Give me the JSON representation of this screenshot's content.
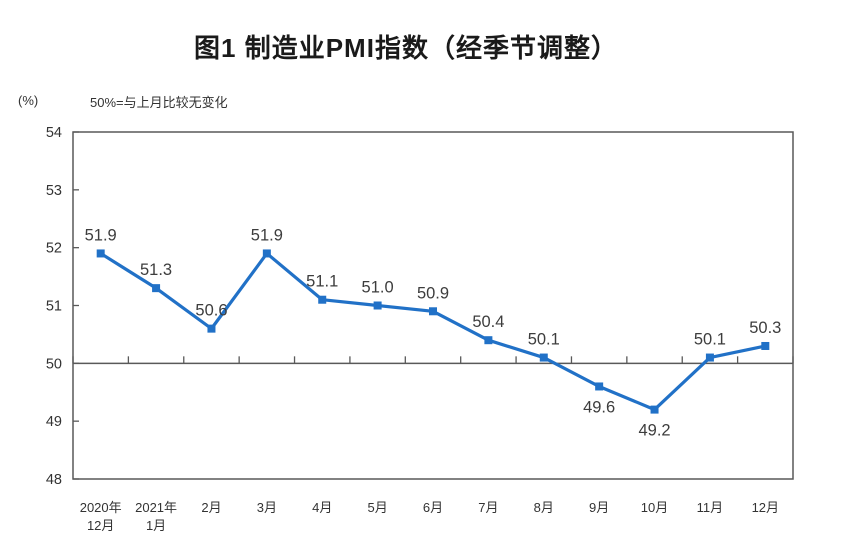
{
  "header": {
    "title": "图1 制造业PMI指数（经季节调整）",
    "unit_label": "(%)",
    "note": "50%=与上月比较无变化"
  },
  "chart_data": {
    "type": "line",
    "categories": [
      "2020年\n12月",
      "2021年\n1月",
      "2月",
      "3月",
      "4月",
      "5月",
      "6月",
      "7月",
      "8月",
      "9月",
      "10月",
      "11月",
      "12月"
    ],
    "values": [
      51.9,
      51.3,
      50.6,
      51.9,
      51.1,
      51.0,
      50.9,
      50.4,
      50.1,
      49.6,
      49.2,
      50.1,
      50.3
    ],
    "title": "图1 制造业PMI指数（经季节调整）",
    "xlabel": "",
    "ylabel": "(%)",
    "ylim": [
      48,
      54
    ],
    "y_ticks": [
      48,
      49,
      50,
      51,
      52,
      53,
      54
    ],
    "reference_line": 50,
    "data_labels": true,
    "grid": false,
    "legend_position": "none",
    "colors": {
      "line": "#2171C7",
      "marker": "#2171C7",
      "axis": "#595959",
      "data_label": "#3D3D3D",
      "tick_label": "#333333"
    }
  }
}
